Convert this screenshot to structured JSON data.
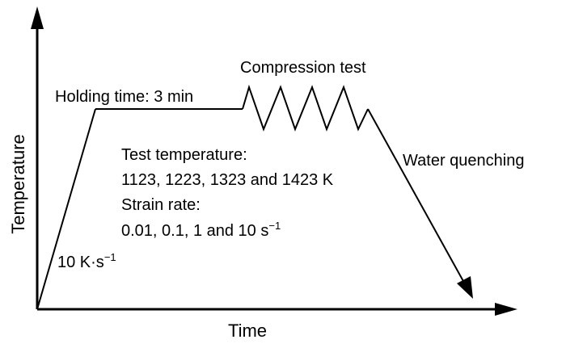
{
  "axes": {
    "x_label": "Time",
    "y_label": "Temperature"
  },
  "labels": {
    "heating_rate": {
      "prefix": "10 K·s",
      "superscript": "−1"
    },
    "holding_time": "Holding time: 3 min",
    "compression_test": "Compression test",
    "water_quenching": "Water quenching",
    "test_temperature_title": "Test temperature:",
    "test_temperature_values": "1123, 1223, 1323 and 1423 K",
    "strain_rate_title": "Strain rate:",
    "strain_rate_values": {
      "prefix": "0.01, 0.1, 1 and 10 s",
      "superscript": "−1"
    }
  },
  "colors": {
    "line": "#000000",
    "text": "#000000",
    "background": "#ffffff"
  }
}
